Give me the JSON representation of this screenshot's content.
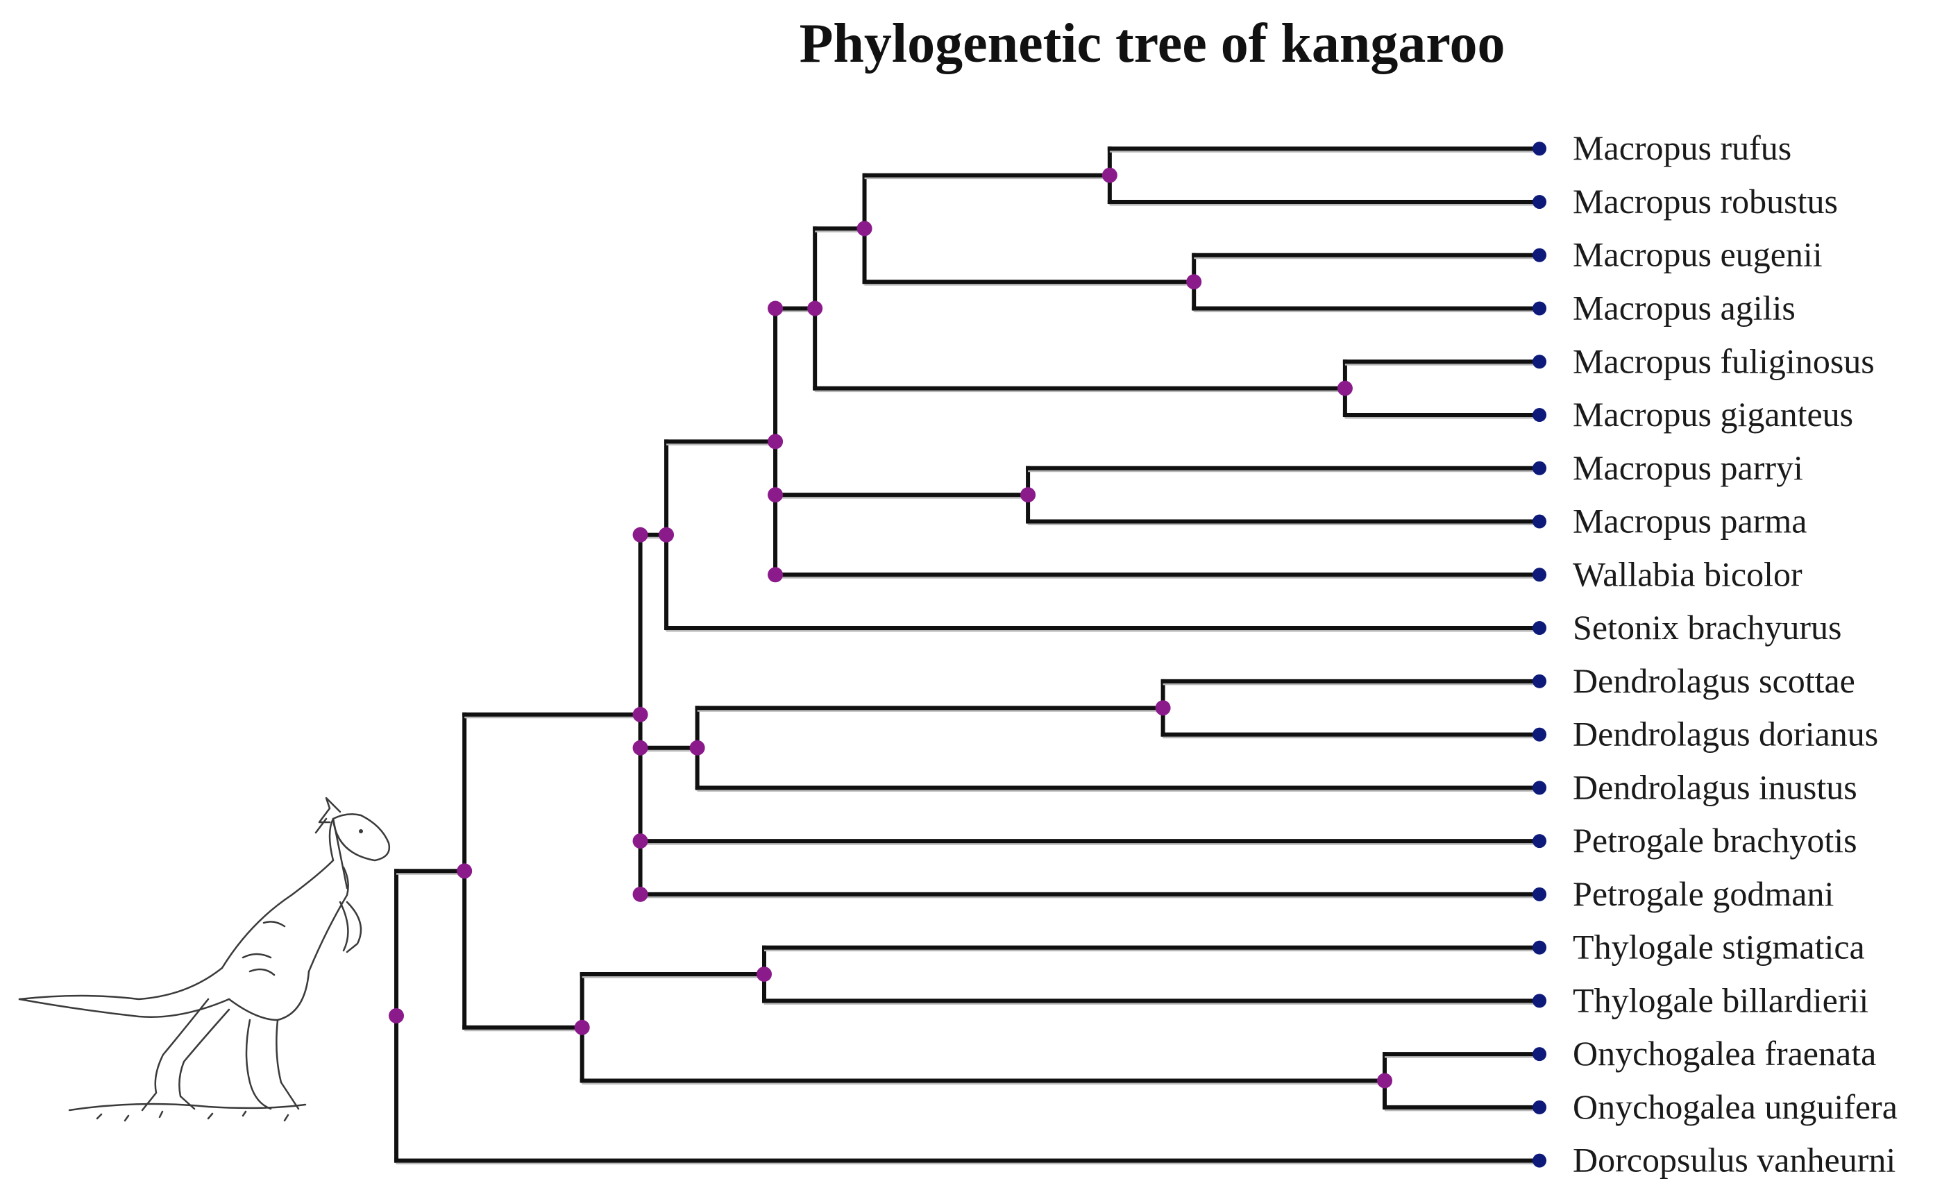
{
  "title": "Phylogenetic tree of kangaroo",
  "colors": {
    "branch": "#101010",
    "internal_node": "#8b1a8b",
    "leaf_node": "#0d1a7a",
    "label": "#1a1a1a"
  },
  "illustration": {
    "icon": "kangaroo-illustration"
  },
  "taxa": [
    "Macropus rufus",
    "Macropus robustus",
    "Macropus eugenii",
    "Macropus agilis",
    "Macropus fuliginosus",
    "Macropus giganteus",
    "Macropus parryi",
    "Macropus parma",
    "Wallabia bicolor",
    "Setonix brachyurus",
    "Dendrolagus scottae",
    "Dendrolagus dorianus",
    "Dendrolagus inustus",
    "Petrogale brachyotis",
    "Petrogale godmani",
    "Thylogale stigmatica",
    "Thylogale billardierii",
    "Onychogalea fraenata",
    "Onychogalea unguifera",
    "Dorcopsulus vanheurni"
  ],
  "tree": {
    "name": "root",
    "children": [
      {
        "name": "n1",
        "children": [
          {
            "name": "n2",
            "children": [
              {
                "name": "n3",
                "children": [
                  {
                    "name": "n4",
                    "children": [
                      {
                        "name": "n5",
                        "children": [
                          {
                            "name": "n6",
                            "children": [
                              {
                                "name": "n7",
                                "children": [
                                  {
                                    "leaf": 0
                                  },
                                  {
                                    "leaf": 1
                                  }
                                ]
                              },
                              {
                                "name": "n8",
                                "children": [
                                  {
                                    "leaf": 2
                                  },
                                  {
                                    "leaf": 3
                                  }
                                ]
                              }
                            ]
                          },
                          {
                            "name": "n9",
                            "children": [
                              {
                                "leaf": 4
                              },
                              {
                                "leaf": 5
                              }
                            ]
                          }
                        ]
                      },
                      {
                        "name": "n10",
                        "children": [
                          {
                            "leaf": 6
                          },
                          {
                            "leaf": 7
                          }
                        ]
                      },
                      {
                        "leaf": 8
                      }
                    ]
                  },
                  {
                    "leaf": 9
                  }
                ]
              },
              {
                "name": "n11",
                "children": [
                  {
                    "name": "n12",
                    "children": [
                      {
                        "leaf": 10
                      },
                      {
                        "leaf": 11
                      }
                    ]
                  },
                  {
                    "leaf": 12
                  }
                ]
              },
              {
                "leaf": 13
              },
              {
                "leaf": 14
              }
            ]
          },
          {
            "name": "n13",
            "children": [
              {
                "name": "n14",
                "children": [
                  {
                    "leaf": 15
                  },
                  {
                    "leaf": 16
                  }
                ]
              },
              {
                "name": "n15",
                "children": [
                  {
                    "leaf": 17
                  },
                  {
                    "leaf": 18
                  }
                ]
              }
            ]
          }
        ]
      },
      {
        "leaf": 19
      }
    ]
  }
}
